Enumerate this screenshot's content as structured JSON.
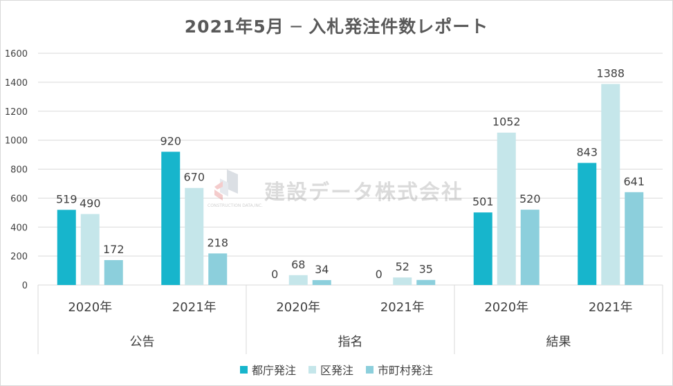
{
  "chart_data": {
    "type": "bar",
    "title": "2021年5月 ─ 入札発注件数レポート",
    "groups": [
      {
        "name": "公告",
        "years": [
          {
            "label": "2020年",
            "values": [
              519,
              490,
              172
            ]
          },
          {
            "label": "2021年",
            "values": [
              920,
              670,
              218
            ]
          }
        ]
      },
      {
        "name": "指名",
        "years": [
          {
            "label": "2020年",
            "values": [
              0,
              68,
              34
            ]
          },
          {
            "label": "2021年",
            "values": [
              0,
              52,
              35
            ]
          }
        ]
      },
      {
        "name": "結果",
        "years": [
          {
            "label": "2020年",
            "values": [
              501,
              1052,
              520
            ]
          },
          {
            "label": "2021年",
            "values": [
              843,
              1388,
              641
            ]
          }
        ]
      }
    ],
    "series": [
      {
        "name": "都庁発注",
        "color": "#17b5cc"
      },
      {
        "name": "区発注",
        "color": "#c5e6ea"
      },
      {
        "name": "市町村発注",
        "color": "#8ccfdc"
      }
    ],
    "ylim": [
      0,
      1600
    ],
    "yticks": [
      0,
      200,
      400,
      600,
      800,
      1000,
      1200,
      1400,
      1600
    ],
    "grid": true,
    "legend_position": "bottom"
  },
  "watermark": {
    "text": "建設データ株式会社",
    "sub": "CONSTRUCTION DATA,INC."
  }
}
